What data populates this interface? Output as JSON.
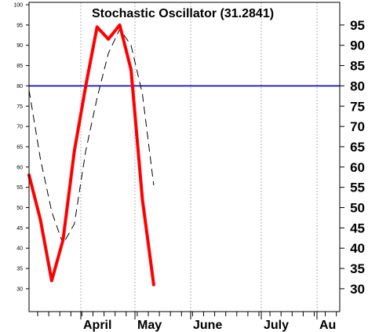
{
  "chart_data": {
    "type": "line",
    "title": "Stochastic Oscillator (31.2841)",
    "xlabel": "",
    "ylabel": "",
    "ylim": [
      21,
      101
    ],
    "left_ticks": [
      "100",
      "95",
      "90",
      "85",
      "80",
      "75",
      "70",
      "65",
      "60",
      "55",
      "50",
      "45",
      "40",
      "35",
      "30"
    ],
    "right_ticks": [
      "95",
      "90",
      "85",
      "80",
      "75",
      "70",
      "65",
      "60",
      "55",
      "50",
      "45",
      "40",
      "35",
      "30"
    ],
    "x_labels": [
      "April",
      "May",
      "June",
      "July",
      "Au"
    ],
    "reference_line": {
      "value": 80,
      "color": "#0000cc"
    },
    "series": [
      {
        "style": "solid",
        "color": "#ff0000",
        "values": [
          58,
          47,
          32,
          42,
          64,
          80,
          94.5,
          91.5,
          95,
          84,
          52,
          31
        ]
      },
      {
        "style": "dashed",
        "color": "#000000",
        "values": [
          79,
          62,
          49,
          41,
          46,
          64,
          77,
          88,
          94,
          90,
          78,
          55.5
        ]
      }
    ],
    "grid": {
      "vertical": true,
      "horizontal": false
    }
  }
}
